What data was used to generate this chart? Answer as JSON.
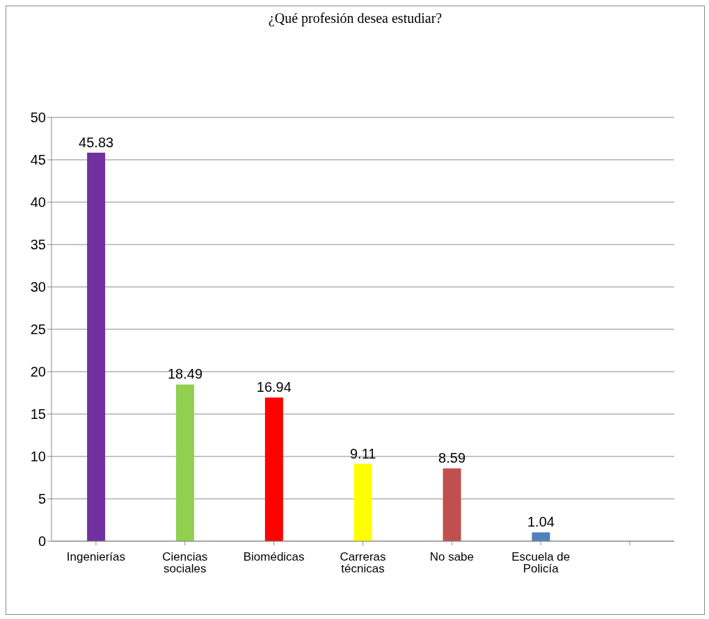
{
  "chart_data": {
    "type": "bar",
    "title": "¿Qué profesión desea estudiar?",
    "categories": [
      "Ingenierías",
      "Ciencias sociales",
      "Biomédicas",
      "Carreras técnicas",
      "No sabe",
      "Escuela de Policía",
      null
    ],
    "values": [
      45.83,
      18.49,
      16.94,
      9.11,
      8.59,
      1.04,
      null
    ],
    "colors": [
      "#7030a0",
      "#92d050",
      "#ff0000",
      "#ffff00",
      "#c0504d",
      "#4f81bd",
      null
    ],
    "ylim": [
      0,
      50
    ],
    "yticks": [
      0,
      5,
      10,
      15,
      20,
      25,
      30,
      35,
      40,
      45,
      50
    ],
    "grid": "y",
    "data_labels": true
  }
}
